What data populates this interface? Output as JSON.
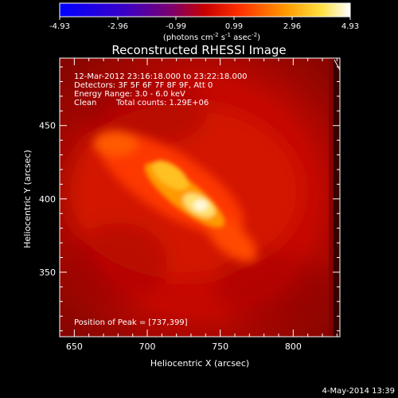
{
  "colorbar": {
    "ticks": [
      "-4.93",
      "-2.96",
      "-0.99",
      "0.99",
      "2.96",
      "4.93"
    ],
    "units_prefix": "(photons cm",
    "units_exp1": "-2",
    "units_mid": " s",
    "units_exp2": "-1",
    "units_mid2": " asec",
    "units_exp3": "-2",
    "units_suffix": ")"
  },
  "title": "Reconstructed RHESSI Image",
  "annotations": {
    "time_range": "12-Mar-2012 23:16:18.000 to 23:22:18.000",
    "detectors": "Detectors: 3F 5F 6F 7F 8F 9F, Att 0",
    "energy": "Energy Range: 3.0 - 6.0 keV",
    "clean_label": "Clean",
    "counts": "Total counts: 1.29E+06",
    "peak": "Position of Peak = [737,399]"
  },
  "axes": {
    "x_label": "Heliocentric X (arcsec)",
    "y_label": "Heliocentric Y (arcsec)",
    "x_ticks": [
      "650",
      "700",
      "750",
      "800"
    ],
    "y_ticks": [
      "350",
      "400",
      "450"
    ],
    "x_range": [
      640,
      832
    ],
    "y_range": [
      306,
      496
    ]
  },
  "footer_date": "4-May-2014 13:39",
  "colors": {
    "cmap_low": "#0000ff",
    "cmap_mid": "#ff0000",
    "cmap_high": "#ffffff",
    "background": "#000000"
  }
}
